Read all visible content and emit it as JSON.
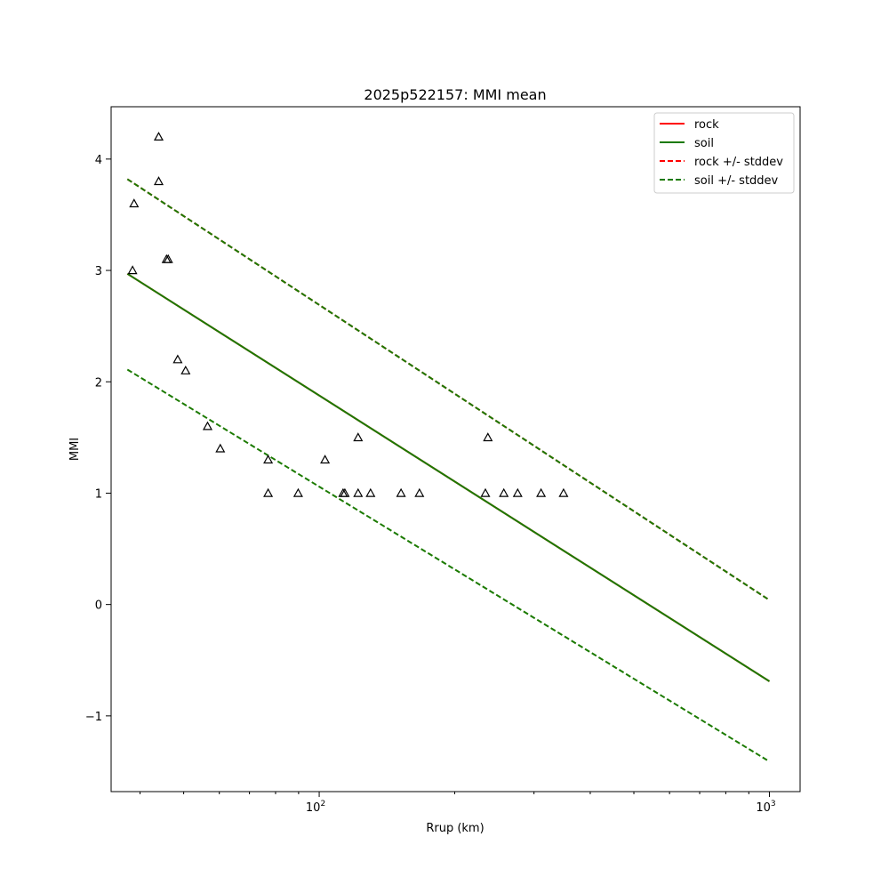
{
  "chart_data": {
    "type": "scatter",
    "title": "2025p522157: MMI mean",
    "xlabel": "Rrup (km)",
    "ylabel": "MMI",
    "xscale": "log",
    "xlim": [
      34.5,
      1170
    ],
    "ylim": [
      -1.68,
      4.47
    ],
    "grid": false,
    "legend_position": "top-right",
    "x_ticks": [
      {
        "value": 100,
        "label": "10",
        "exp": "2"
      },
      {
        "value": 1000,
        "label": "10",
        "exp": "3"
      }
    ],
    "y_ticks": [
      {
        "value": -1,
        "label": "−1"
      },
      {
        "value": 0,
        "label": "0"
      },
      {
        "value": 1,
        "label": "1"
      },
      {
        "value": 2,
        "label": "2"
      },
      {
        "value": 3,
        "label": "3"
      },
      {
        "value": 4,
        "label": "4"
      }
    ],
    "lines": [
      {
        "name": "rock",
        "color": "#ff0000",
        "dash": "solid",
        "x": [
          37.5,
          1000
        ],
        "y": [
          2.97,
          -0.69
        ]
      },
      {
        "name": "soil",
        "color": "#1b7a00",
        "dash": "solid",
        "x": [
          37.5,
          1000
        ],
        "y": [
          2.97,
          -0.69
        ]
      },
      {
        "name": "rock +/- stddev",
        "color": "#ff0000",
        "dash": "dashed",
        "x": [
          37.5,
          1000
        ],
        "y": [
          3.82,
          0.04
        ]
      },
      {
        "name": "soil +/- stddev",
        "color": "#1b7a00",
        "dash": "dashed",
        "x": [
          37.5,
          1000
        ],
        "y": [
          3.82,
          0.04
        ]
      },
      {
        "name": "",
        "color": "#1b7a00",
        "dash": "dashed",
        "x": [
          37.5,
          1000
        ],
        "y": [
          2.11,
          -1.41
        ]
      }
    ],
    "observations": {
      "marker": "triangle",
      "color": "#000000",
      "x": [
        38.5,
        38.8,
        44.0,
        44.0,
        45.8,
        46.2,
        48.5,
        50.5,
        56.5,
        60.3,
        77.0,
        77.0,
        89.8,
        103.0,
        113.0,
        114.0,
        122.0,
        122.0,
        130.0,
        152.0,
        167.0,
        237.0,
        234.0,
        257.0,
        276.0,
        311.0,
        349.0
      ],
      "y": [
        3.0,
        3.6,
        4.2,
        3.8,
        3.1,
        3.1,
        2.2,
        2.1,
        1.6,
        1.4,
        1.3,
        1.0,
        1.0,
        1.3,
        1.0,
        1.0,
        1.5,
        1.0,
        1.0,
        1.0,
        1.0,
        1.5,
        1.0,
        1.0,
        1.0,
        1.0,
        1.0
      ]
    },
    "legend": [
      {
        "label": "rock",
        "color": "#ff0000",
        "dash": "solid"
      },
      {
        "label": "soil",
        "color": "#1b7a00",
        "dash": "solid"
      },
      {
        "label": "rock +/- stddev",
        "color": "#ff0000",
        "dash": "dashed"
      },
      {
        "label": "soil +/- stddev",
        "color": "#1b7a00",
        "dash": "dashed"
      }
    ]
  }
}
